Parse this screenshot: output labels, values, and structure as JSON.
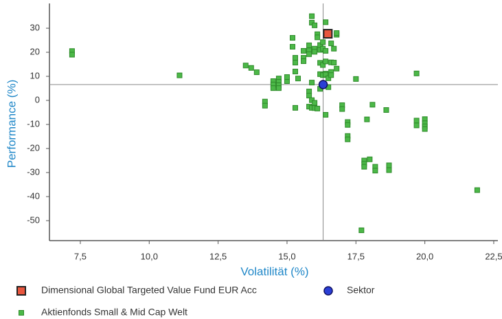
{
  "chart_data": {
    "type": "scatter",
    "x_label": "Volatilität (%)",
    "y_label": "Performance (%)",
    "xlim": [
      6.38,
      22.65
    ],
    "ylim": [
      -58.3,
      40.3
    ],
    "xticks": [
      {
        "value": 7.5,
        "label": "7,5"
      },
      {
        "value": 10,
        "label": "10,0"
      },
      {
        "value": 12.5,
        "label": "12,5"
      },
      {
        "value": 15,
        "label": "15,0"
      },
      {
        "value": 17.5,
        "label": "17,5"
      },
      {
        "value": 20,
        "label": "20,0"
      },
      {
        "value": 22.5,
        "label": "22,5"
      }
    ],
    "yticks": [
      30,
      20,
      10,
      0,
      -10,
      -20,
      -30,
      -40,
      -50
    ],
    "series": [
      {
        "name": "Aktienfonds Small & Mid Cap  Welt",
        "color": "#4cb848",
        "marker": "square",
        "x": [
          7.2,
          7.2,
          11.1,
          13.5,
          13.7,
          13.9,
          14.2,
          14.2,
          14.5,
          14.5,
          14.5,
          14.7,
          14.7,
          14.7,
          14.7,
          15.0,
          15.0,
          15.2,
          15.2,
          15.3,
          15.3,
          15.3,
          15.3,
          15.4,
          15.6,
          15.6,
          15.6,
          15.8,
          15.8,
          15.9,
          15.9,
          16.0,
          15.8,
          15.8,
          15.8,
          16.0,
          16.0,
          15.9,
          15.8,
          15.9,
          16.0,
          16.1,
          16.1,
          16.1,
          16.2,
          16.2,
          16.2,
          16.2,
          16.3,
          16.3,
          16.3,
          16.3,
          16.4,
          16.4,
          16.6,
          16.4,
          16.4,
          16.4,
          16.4,
          16.5,
          16.6,
          16.6,
          16.6,
          16.7,
          16.8,
          16.8,
          16.7,
          16.8,
          16.2,
          16.5,
          17.5,
          17.0,
          17.0,
          17.2,
          17.2,
          17.2,
          17.2,
          17.7,
          17.8,
          17.8,
          17.8,
          17.9,
          18.0,
          18.1,
          18.2,
          18.2,
          18.6,
          18.7,
          18.7,
          19.7,
          19.7,
          19.7,
          20.0,
          20.0,
          20.0,
          20.0,
          21.9,
          15.9,
          16.0
        ],
        "values": [
          20.5,
          19.0,
          10.4,
          14.5,
          13.5,
          11.7,
          -0.5,
          -2.2,
          8.0,
          6.6,
          5.1,
          9.1,
          7.7,
          6.3,
          5.1,
          8.0,
          9.7,
          26.0,
          22.3,
          17.7,
          15.7,
          12.0,
          -3.1,
          9.1,
          20.6,
          17.7,
          16.3,
          3.7,
          2.0,
          35.0,
          32.3,
          31.2,
          22.9,
          20.8,
          19.2,
          21.5,
          20.2,
          7.4,
          -2.6,
          -3.1,
          -3.2,
          -3.4,
          27.5,
          26.2,
          23.0,
          21.0,
          15.6,
          10.9,
          24.2,
          21.5,
          10.5,
          14.7,
          -6.0,
          32.5,
          23.7,
          20.6,
          16.2,
          11.1,
          10.7,
          9.2,
          15.8,
          11.8,
          10.5,
          15.7,
          27.3,
          28.0,
          21.5,
          13.2,
          4.8,
          5.5,
          8.9,
          -2.0,
          -3.6,
          -9.0,
          -10.2,
          -14.8,
          -16.2,
          -54.0,
          -25.0,
          -26.4,
          -27.6,
          -7.9,
          -24.5,
          -1.8,
          -27.6,
          -29.2,
          -4.0,
          -27.0,
          -29.0,
          11.2,
          -8.4,
          -10.4,
          -7.8,
          -9.5,
          -10.8,
          -11.9,
          -37.3,
          0.1,
          -1.0
        ]
      },
      {
        "name": "Sektor",
        "color": "#2a3fd6",
        "marker": "circle",
        "x": [
          16.31
        ],
        "values": [
          6.57
        ]
      },
      {
        "name": "Dimensional Global Targeted Value Fund EUR Acc",
        "color": "#e8563e",
        "marker": "bigsquare",
        "x": [
          16.48
        ],
        "values": [
          27.7
        ]
      }
    ],
    "crosshair": true
  }
}
